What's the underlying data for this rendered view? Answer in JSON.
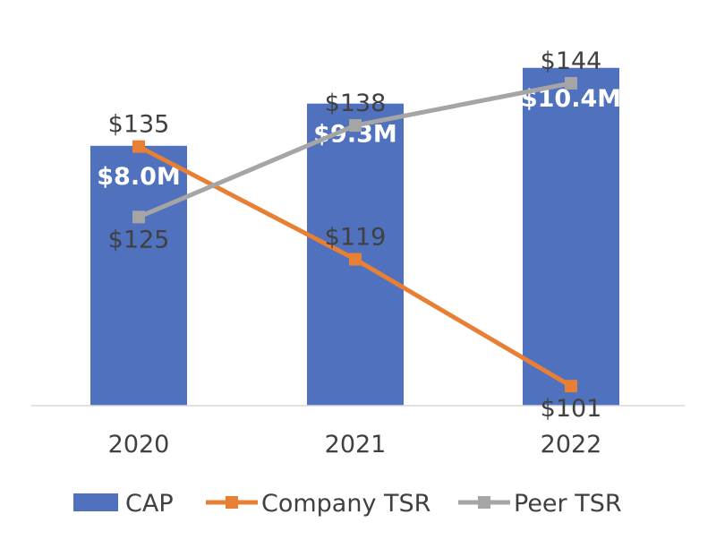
{
  "chart_data": {
    "type": "bar",
    "categories": [
      "2020",
      "2021",
      "2022"
    ],
    "series": [
      {
        "name": "CAP",
        "type": "bar",
        "values": [
          8.0,
          9.3,
          10.4
        ],
        "labels": [
          "$8.0M",
          "$9.3M",
          "$10.4M"
        ],
        "color": "#4F71BE"
      },
      {
        "name": "Company TSR",
        "type": "line",
        "values": [
          135,
          119,
          101
        ],
        "labels": [
          "$135",
          "$119",
          "$101"
        ],
        "color": "#E77F35"
      },
      {
        "name": "Peer TSR",
        "type": "line",
        "values": [
          125,
          138,
          144
        ],
        "labels": [
          "$125",
          "$138",
          "$144"
        ],
        "color": "#A5A5A5"
      }
    ],
    "bar_axis_range": [
      0,
      11.0
    ],
    "line_axis_range": [
      10,
      175
    ],
    "grid": false,
    "legend": "bottom"
  }
}
